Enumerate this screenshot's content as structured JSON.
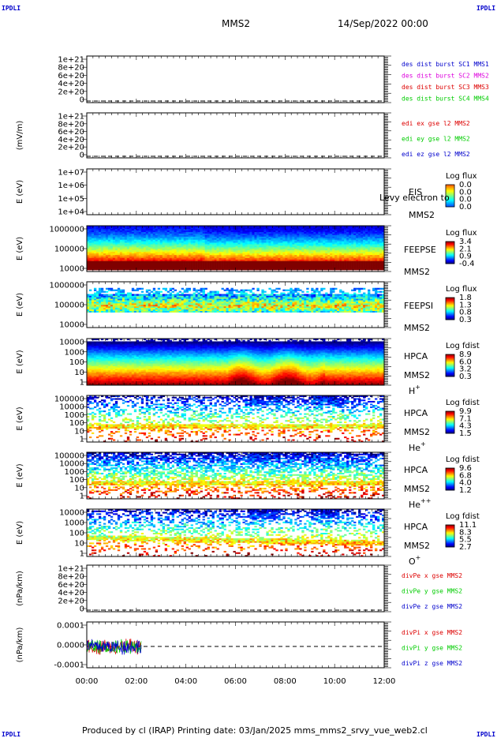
{
  "corners": {
    "tl": "IPDLI",
    "tr": "IPDLI",
    "bl": "IPDLI",
    "br": "IPDLI"
  },
  "header": {
    "title": "MMS2",
    "datetime": "14/Sep/2022 00:00"
  },
  "footer": {
    "text": "Produced by cl (IRAP)   Printing date: 03/Jan/2025   mms_mms2_srvy_vue_web2.cl"
  },
  "x_axis": {
    "ticks": [
      "00:00",
      "02:00",
      "04:00",
      "06:00",
      "08:00",
      "10:00",
      "12:00"
    ],
    "range_hours": [
      0,
      12
    ]
  },
  "colors": {
    "red": "#dd0000",
    "magenta": "#dd00dd",
    "green": "#00cc00",
    "blue": "#0000cc",
    "orange": "#ee7700"
  },
  "chart_data": [
    {
      "id": "p1",
      "type": "line",
      "ylabel": "",
      "ytick_labels": [
        "1e+21",
        "8e+20",
        "6e+20",
        "4e+20",
        "2e+20",
        "0"
      ],
      "ylim": [
        0,
        1e+21
      ],
      "series": [
        {
          "name": "des dist burst SC1 MMS1",
          "color": "#0000cc"
        },
        {
          "name": "des dist burst SC2 MMS2",
          "color": "#dd00dd"
        },
        {
          "name": "des dist burst SC3 MMS3",
          "color": "#dd0000"
        },
        {
          "name": "des dist burst SC4 MMS4",
          "color": "#00cc00"
        }
      ],
      "reference_line": 0
    },
    {
      "id": "p2",
      "type": "line",
      "ylabel": "(mV/m)",
      "ytick_labels": [
        "1e+21",
        "8e+20",
        "6e+20",
        "4e+20",
        "2e+20",
        "0"
      ],
      "ylim": [
        0,
        1e+21
      ],
      "series": [
        {
          "name": "edi ex gse l2 MMS2",
          "color": "#dd0000"
        },
        {
          "name": "edi ey gse l2 MMS2",
          "color": "#00cc00"
        },
        {
          "name": "edi ez gse l2 MMS2",
          "color": "#0000cc"
        }
      ],
      "reference_line": 0
    },
    {
      "id": "p3",
      "type": "heatmap",
      "ylabel": "E (eV)",
      "ytick_labels": [
        "1e+07",
        "1e+06",
        "1e+05",
        "1e+04"
      ],
      "ylim": [
        10000.0,
        10000000.0
      ],
      "label_lines": [
        "EIS",
        "MMS2"
      ],
      "overlay_text": "Levy electron to",
      "cbar_title": "Log flux",
      "cbar_ticks": [
        "0.0",
        "0.0",
        "0.0",
        "0.0"
      ]
    },
    {
      "id": "p4",
      "type": "heatmap",
      "ylabel": "E (eV)",
      "ytick_labels": [
        "1000000",
        "100000",
        "10000"
      ],
      "ylim": [
        10000.0,
        1000000.0
      ],
      "label_lines": [
        "FEEPSE",
        "MMS2"
      ],
      "cbar_title": "Log flux",
      "cbar_ticks": [
        "3.4",
        "2.1",
        "0.9",
        "-0.4"
      ]
    },
    {
      "id": "p5",
      "type": "heatmap",
      "ylabel": "E (eV)",
      "ytick_labels": [
        "1000000",
        "100000",
        "10000"
      ],
      "ylim": [
        10000.0,
        1000000.0
      ],
      "label_lines": [
        "FEEPSI",
        "MMS2"
      ],
      "cbar_title": "Log flux",
      "cbar_ticks": [
        "1.8",
        "1.3",
        "0.8",
        "0.3"
      ]
    },
    {
      "id": "p6",
      "type": "heatmap",
      "ylabel": "E (eV)",
      "ytick_labels": [
        "10000",
        "1000",
        "100",
        "10",
        "1"
      ],
      "ylim": [
        1,
        30000
      ],
      "label_lines": [
        "HPCA",
        "MMS2"
      ],
      "species": "H",
      "species_sup": "+",
      "cbar_title": "Log fdist",
      "cbar_ticks": [
        "8.9",
        "6.0",
        "3.2",
        "0.3"
      ]
    },
    {
      "id": "p7",
      "type": "heatmap",
      "ylabel": "E (eV)",
      "ytick_labels": [
        "100000",
        "10000",
        "1000",
        "100",
        "10",
        "1"
      ],
      "ylim": [
        1,
        100000
      ],
      "label_lines": [
        "HPCA",
        "MMS2"
      ],
      "species": "He",
      "species_sup": "+",
      "cbar_title": "Log fdist",
      "cbar_ticks": [
        "9.9",
        "7.1",
        "4.3",
        "1.5"
      ]
    },
    {
      "id": "p8",
      "type": "heatmap",
      "ylabel": "E (eV)",
      "ytick_labels": [
        "100000",
        "10000",
        "1000",
        "100",
        "10",
        "1"
      ],
      "ylim": [
        1,
        100000
      ],
      "label_lines": [
        "HPCA",
        "MMS2"
      ],
      "species": "He",
      "species_sup": "++",
      "cbar_title": "Log fdist",
      "cbar_ticks": [
        "9.6",
        "6.8",
        "4.0",
        "1.2"
      ]
    },
    {
      "id": "p9",
      "type": "heatmap",
      "ylabel": "E (eV)",
      "ytick_labels": [
        "10000",
        "1000",
        "100",
        "10",
        "1"
      ],
      "ylim": [
        1,
        30000
      ],
      "label_lines": [
        "HPCA",
        "MMS2"
      ],
      "species": "O",
      "species_sup": "+",
      "cbar_title": "Log fdist",
      "cbar_ticks": [
        "11.1",
        "8.3",
        "5.5",
        "2.7"
      ]
    },
    {
      "id": "p10",
      "type": "line",
      "ylabel": "(nPa/km)",
      "ytick_labels": [
        "1e+21",
        "8e+20",
        "6e+20",
        "4e+20",
        "2e+20",
        "0"
      ],
      "ylim": [
        0,
        1e+21
      ],
      "series": [
        {
          "name": "divPe x gse MMS2",
          "color": "#dd0000"
        },
        {
          "name": "divPe y gse MMS2",
          "color": "#00cc00"
        },
        {
          "name": "divPe z gse MMS2",
          "color": "#0000cc"
        }
      ],
      "reference_line": 0
    },
    {
      "id": "p11",
      "type": "line",
      "ylabel": "(nPa/km)",
      "ytick_labels": [
        "0.0001",
        "0.0000",
        "-0.0001"
      ],
      "ylim": [
        -0.00017,
        0.00017
      ],
      "series": [
        {
          "name": "divPi x gse MMS2",
          "color": "#dd0000"
        },
        {
          "name": "divPi y gse MMS2",
          "color": "#00cc00"
        },
        {
          "name": "divPi z gse MMS2",
          "color": "#0000cc"
        }
      ],
      "reference_line": 0,
      "data_extent_hours": [
        0,
        2.2
      ]
    }
  ]
}
